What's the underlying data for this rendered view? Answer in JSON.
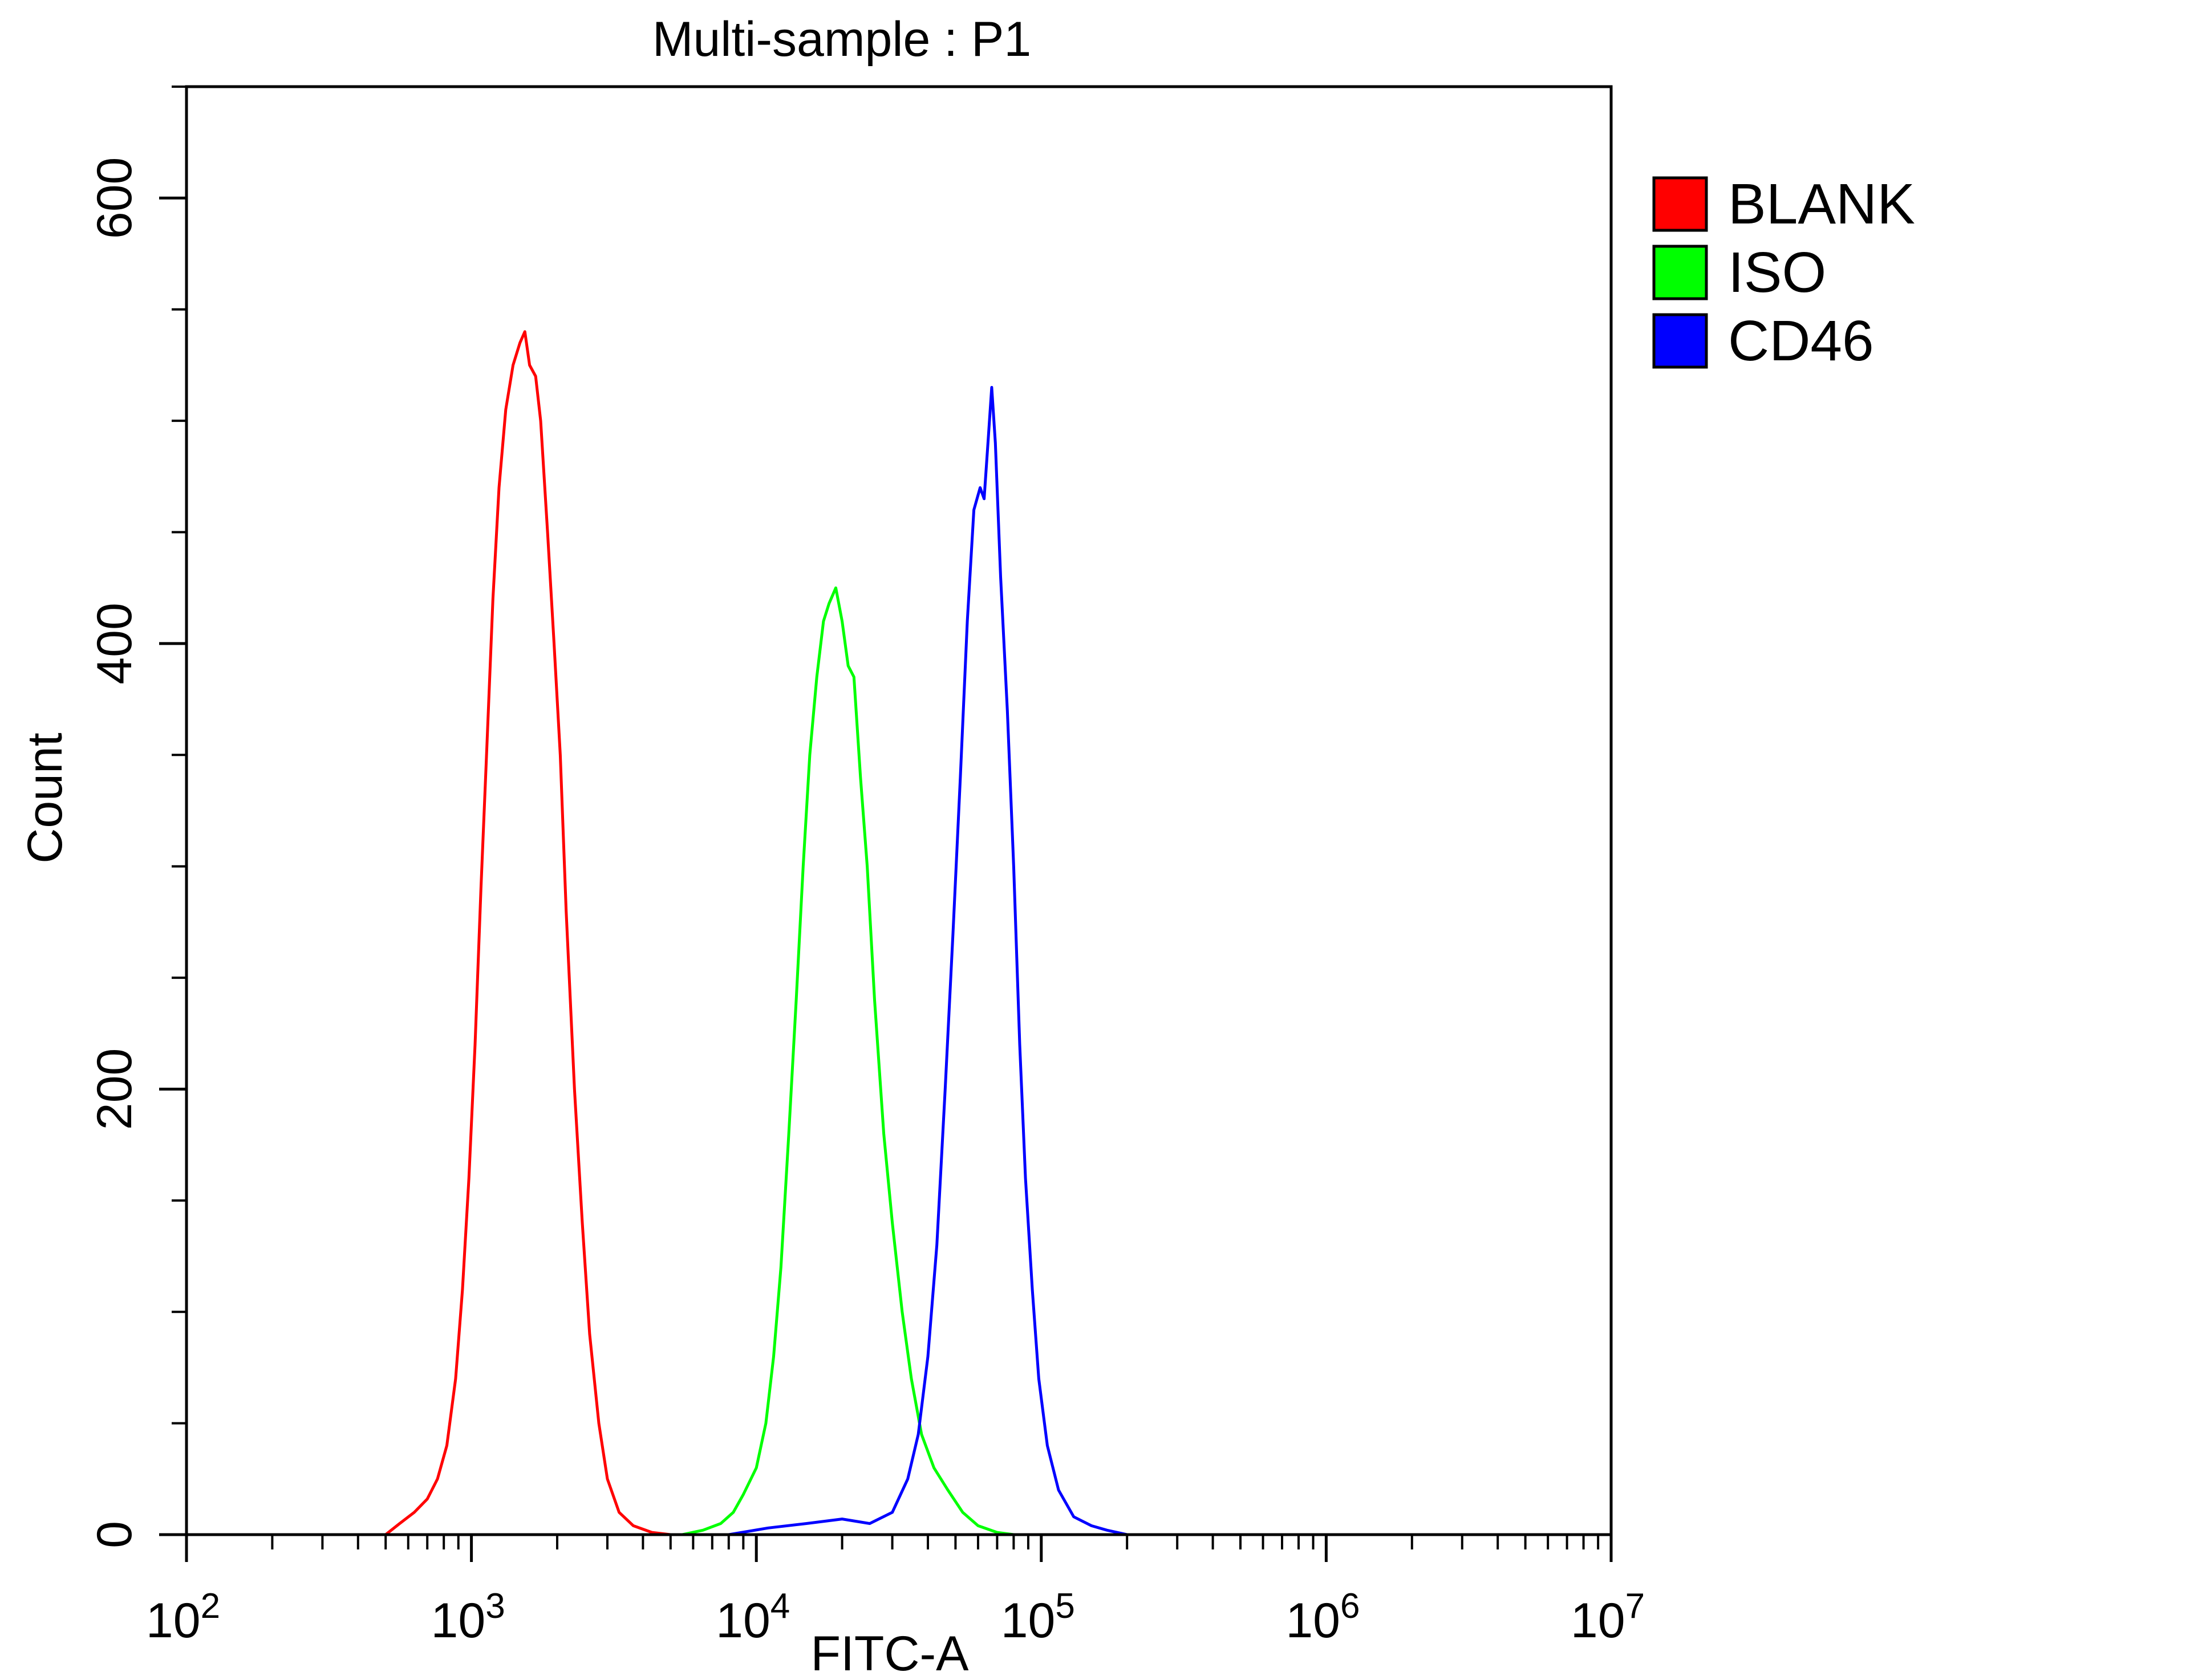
{
  "chart_data": {
    "type": "line",
    "title": "Multi-sample : P1",
    "xlabel": "FITC-A",
    "ylabel": "Count",
    "x_scale": "log",
    "xlim": [
      100,
      10000000
    ],
    "ylim": [
      0,
      650
    ],
    "x_ticks": [
      {
        "base": "10",
        "exp": "2",
        "value": 100
      },
      {
        "base": "10",
        "exp": "3",
        "value": 1000
      },
      {
        "base": "10",
        "exp": "4",
        "value": 10000
      },
      {
        "base": "10",
        "exp": "5",
        "value": 100000
      },
      {
        "base": "10",
        "exp": "6",
        "value": 1000000
      },
      {
        "base": "10",
        "exp": "7",
        "value": 10000000
      }
    ],
    "y_ticks": [
      {
        "label": "0",
        "value": 0
      },
      {
        "label": "200",
        "value": 200
      },
      {
        "label": "400",
        "value": 400
      },
      {
        "label": "600",
        "value": 600
      }
    ],
    "grid": false,
    "legend_position": "top-right outside plot",
    "series": [
      {
        "name": "BLANK",
        "color": "#ff0000",
        "points": [
          [
            500,
            0
          ],
          [
            560,
            5
          ],
          [
            630,
            10
          ],
          [
            700,
            16
          ],
          [
            760,
            25
          ],
          [
            820,
            40
          ],
          [
            880,
            70
          ],
          [
            930,
            110
          ],
          [
            980,
            160
          ],
          [
            1030,
            220
          ],
          [
            1080,
            290
          ],
          [
            1130,
            350
          ],
          [
            1190,
            420
          ],
          [
            1250,
            470
          ],
          [
            1320,
            505
          ],
          [
            1400,
            525
          ],
          [
            1480,
            535
          ],
          [
            1540,
            540
          ],
          [
            1600,
            525
          ],
          [
            1680,
            520
          ],
          [
            1750,
            500
          ],
          [
            1850,
            450
          ],
          [
            1950,
            400
          ],
          [
            2050,
            350
          ],
          [
            2150,
            280
          ],
          [
            2300,
            200
          ],
          [
            2450,
            140
          ],
          [
            2600,
            90
          ],
          [
            2800,
            50
          ],
          [
            3000,
            25
          ],
          [
            3300,
            10
          ],
          [
            3700,
            4
          ],
          [
            4300,
            1
          ],
          [
            5000,
            0
          ]
        ]
      },
      {
        "name": "ISO",
        "color": "#00ff00",
        "points": [
          [
            5500,
            0
          ],
          [
            6500,
            2
          ],
          [
            7500,
            5
          ],
          [
            8300,
            10
          ],
          [
            9000,
            18
          ],
          [
            10000,
            30
          ],
          [
            10800,
            50
          ],
          [
            11500,
            80
          ],
          [
            12200,
            120
          ],
          [
            13000,
            180
          ],
          [
            13800,
            240
          ],
          [
            14600,
            300
          ],
          [
            15400,
            350
          ],
          [
            16300,
            385
          ],
          [
            17200,
            410
          ],
          [
            18000,
            418
          ],
          [
            19000,
            425
          ],
          [
            20000,
            410
          ],
          [
            21000,
            390
          ],
          [
            22000,
            385
          ],
          [
            23200,
            340
          ],
          [
            24500,
            300
          ],
          [
            26000,
            240
          ],
          [
            28000,
            180
          ],
          [
            30000,
            140
          ],
          [
            32500,
            100
          ],
          [
            35000,
            70
          ],
          [
            38000,
            45
          ],
          [
            42000,
            30
          ],
          [
            47000,
            20
          ],
          [
            53000,
            10
          ],
          [
            60000,
            4
          ],
          [
            70000,
            1
          ],
          [
            80000,
            0
          ]
        ]
      },
      {
        "name": "CD46",
        "color": "#0000ff",
        "points": [
          [
            8000,
            0
          ],
          [
            11000,
            3
          ],
          [
            15000,
            5
          ],
          [
            20000,
            7
          ],
          [
            25000,
            5
          ],
          [
            30000,
            10
          ],
          [
            34000,
            25
          ],
          [
            37000,
            45
          ],
          [
            40000,
            80
          ],
          [
            43000,
            130
          ],
          [
            46000,
            200
          ],
          [
            49000,
            270
          ],
          [
            52000,
            340
          ],
          [
            55000,
            410
          ],
          [
            58000,
            460
          ],
          [
            61000,
            470
          ],
          [
            63000,
            465
          ],
          [
            65000,
            490
          ],
          [
            67000,
            515
          ],
          [
            69000,
            490
          ],
          [
            72000,
            430
          ],
          [
            76000,
            370
          ],
          [
            80000,
            300
          ],
          [
            84000,
            220
          ],
          [
            88000,
            160
          ],
          [
            93000,
            110
          ],
          [
            98000,
            70
          ],
          [
            105000,
            40
          ],
          [
            115000,
            20
          ],
          [
            130000,
            8
          ],
          [
            150000,
            4
          ],
          [
            170000,
            2
          ],
          [
            200000,
            0
          ]
        ]
      }
    ]
  }
}
